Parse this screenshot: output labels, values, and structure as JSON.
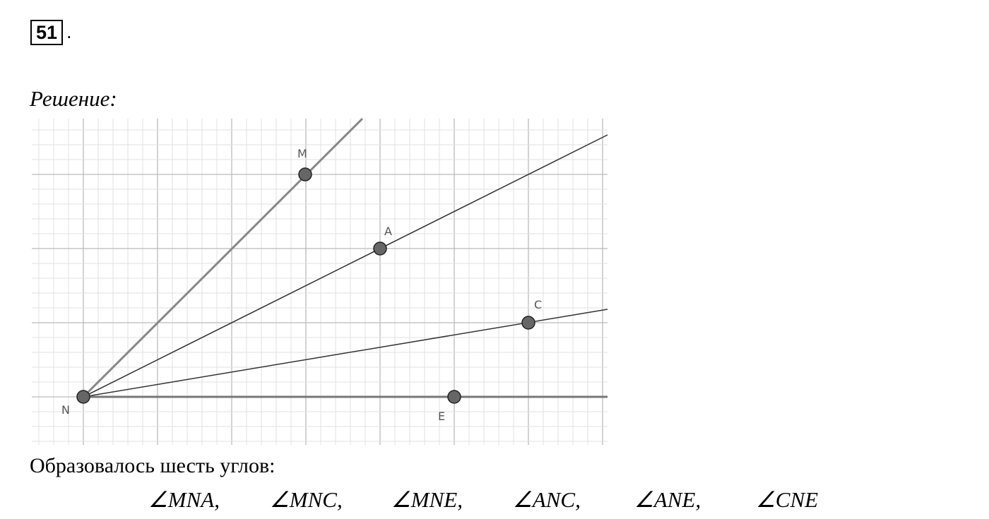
{
  "header": {
    "number": "51",
    "suffix": "."
  },
  "solution_label": "Решение:",
  "figure": {
    "points": [
      {
        "label": "M"
      },
      {
        "label": "A"
      },
      {
        "label": "C"
      },
      {
        "label": "N"
      },
      {
        "label": "E"
      }
    ]
  },
  "text": "Образовалось шесть углов:",
  "angles": [
    "∠MNA,",
    "∠MNC,",
    "∠MNE,",
    "∠ANC,",
    "∠ANE,",
    "∠CNE"
  ]
}
